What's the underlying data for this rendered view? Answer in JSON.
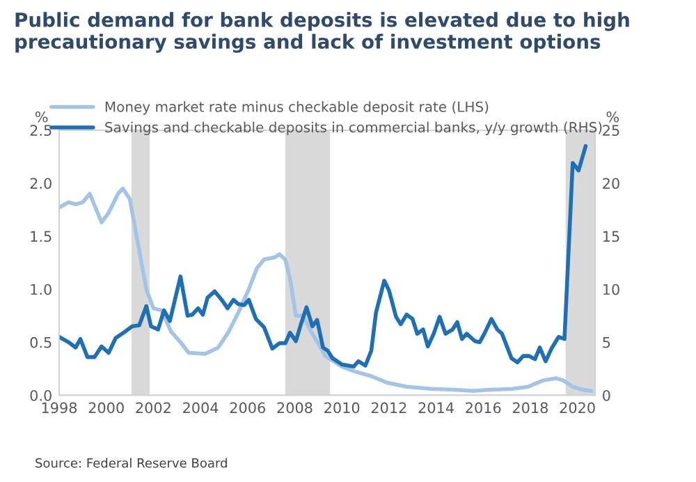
{
  "chart_data": {
    "type": "line",
    "title": "Public demand for bank deposits is elevated due to high precautionary savings and lack of investment options",
    "ylabel": "%",
    "y2label": "%",
    "annotations": [
      "Source: Federal Reserve Board"
    ],
    "series": [
      {
        "name": "Money market rate minus checkable deposit rate (LHS)",
        "color": "#a3c4e4",
        "x": [
          1998.0,
          1998.4,
          1998.7,
          1999.0,
          1999.3,
          1999.8,
          2000.1,
          2000.5,
          2000.7,
          2001.0,
          2001.7,
          2002.0,
          2002.35,
          2002.75,
          2003.15,
          2003.5,
          2004.2,
          2004.75,
          2005.2,
          2005.65,
          2006.05,
          2006.4,
          2006.7,
          2007.15,
          2007.35,
          2007.6,
          2007.8,
          2008.05,
          2008.35,
          2008.7,
          2009.1,
          2009.3,
          2010.0,
          2010.6,
          2011.25,
          2011.9,
          2012.75,
          2013.8,
          2014.9,
          2015.55,
          2016.2,
          2017.25,
          2017.9,
          2018.55,
          2019.1,
          2019.4,
          2019.8,
          2020.25,
          2020.6
        ],
        "values": [
          1.77,
          1.82,
          1.8,
          1.82,
          1.9,
          1.63,
          1.72,
          1.9,
          1.95,
          1.85,
          1.0,
          0.82,
          0.8,
          0.6,
          0.5,
          0.4,
          0.39,
          0.45,
          0.6,
          0.8,
          1.0,
          1.2,
          1.28,
          1.3,
          1.33,
          1.28,
          1.1,
          0.75,
          0.75,
          0.6,
          0.45,
          0.37,
          0.27,
          0.22,
          0.18,
          0.12,
          0.08,
          0.06,
          0.05,
          0.04,
          0.05,
          0.06,
          0.08,
          0.14,
          0.16,
          0.14,
          0.08,
          0.05,
          0.04
        ]
      },
      {
        "name": "Savings and checkable deposits in commercial banks, y/y growth (RHS)",
        "color": "#1f6fb5",
        "axis": "y2",
        "x": [
          1998.0,
          1998.4,
          1998.7,
          1998.9,
          1999.2,
          1999.5,
          1999.8,
          2000.1,
          2000.4,
          2000.8,
          2001.1,
          2001.4,
          2001.7,
          2001.9,
          2002.2,
          2002.45,
          2002.7,
          2003.15,
          2003.45,
          2003.65,
          2003.9,
          2004.1,
          2004.3,
          2004.6,
          2004.9,
          2005.15,
          2005.4,
          2005.6,
          2005.85,
          2006.05,
          2006.35,
          2006.7,
          2007.05,
          2007.35,
          2007.6,
          2007.8,
          2008.05,
          2008.25,
          2008.5,
          2008.75,
          2008.95,
          2009.2,
          2009.4,
          2009.6,
          2010.0,
          2010.5,
          2010.7,
          2011.0,
          2011.25,
          2011.45,
          2011.8,
          2012.0,
          2012.3,
          2012.5,
          2012.75,
          2013.0,
          2013.2,
          2013.45,
          2013.65,
          2013.9,
          2014.15,
          2014.4,
          2014.7,
          2014.9,
          2015.1,
          2015.3,
          2015.65,
          2015.85,
          2016.05,
          2016.35,
          2016.6,
          2016.8,
          2017.2,
          2017.45,
          2017.7,
          2017.95,
          2018.2,
          2018.4,
          2018.65,
          2018.9,
          2019.2,
          2019.45,
          2019.8,
          2020.05,
          2020.35
        ],
        "values": [
          5.5,
          5.0,
          4.5,
          5.3,
          3.6,
          3.6,
          4.6,
          4.0,
          5.4,
          6.0,
          6.5,
          6.6,
          8.4,
          6.5,
          6.2,
          8.0,
          7.0,
          11.2,
          7.5,
          7.6,
          8.2,
          7.6,
          9.2,
          9.8,
          9.0,
          8.2,
          9.0,
          8.6,
          8.5,
          9.0,
          7.2,
          6.4,
          4.4,
          4.9,
          4.9,
          5.9,
          5.1,
          6.6,
          8.3,
          6.5,
          7.1,
          4.5,
          4.2,
          3.5,
          2.9,
          2.7,
          3.2,
          2.8,
          4.2,
          7.8,
          10.8,
          9.9,
          7.4,
          6.7,
          7.6,
          7.2,
          5.8,
          6.2,
          4.6,
          5.8,
          7.4,
          5.8,
          6.2,
          6.9,
          5.3,
          5.8,
          5.1,
          5.0,
          5.8,
          7.2,
          6.2,
          5.8,
          3.5,
          3.1,
          3.7,
          3.7,
          3.4,
          4.5,
          3.2,
          4.4,
          5.5,
          5.3,
          21.9,
          21.2,
          23.5
        ]
      }
    ],
    "xlim": [
      1998,
      2020.75
    ],
    "xticks": [
      1998,
      2000,
      2002,
      2004,
      2006,
      2008,
      2010,
      2012,
      2014,
      2016,
      2018,
      2020
    ],
    "ylim": [
      0,
      2.5
    ],
    "yticks": [
      {
        "value": 0,
        "label": "0.0"
      },
      {
        "value": 0.5,
        "label": "0.5"
      },
      {
        "value": 1,
        "label": "1.0"
      },
      {
        "value": 1.5,
        "label": "1.5"
      },
      {
        "value": 2,
        "label": "2.0"
      },
      {
        "value": 2.5,
        "label": "2.5"
      }
    ],
    "y2lim": [
      0,
      25
    ],
    "y2ticks": [
      0,
      5,
      10,
      15,
      20,
      25
    ],
    "bands": [
      {
        "axis": "x",
        "from": 2001.07,
        "to": 2001.84,
        "color": "#d9d9d9"
      },
      {
        "axis": "x",
        "from": 2007.6,
        "to": 2009.5,
        "color": "#d9d9d9"
      },
      {
        "axis": "x",
        "from": 2019.5,
        "to": 2020.75,
        "color": "#d9d9d9"
      }
    ],
    "legend": "top",
    "grid": false,
    "line_style": "solid"
  }
}
